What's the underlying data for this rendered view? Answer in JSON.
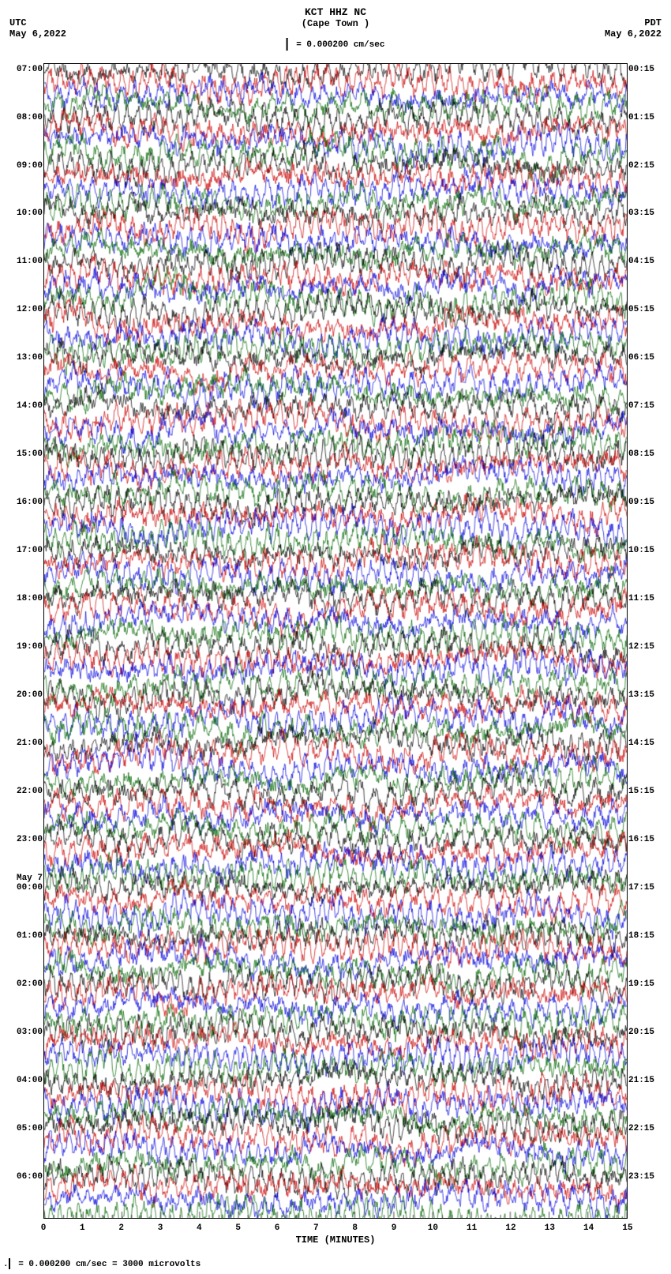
{
  "header": {
    "station": "KCT HHZ NC",
    "location": "(Cape Town )",
    "scale_text": "= 0.000200 cm/sec"
  },
  "tz_left": {
    "tz": "UTC",
    "date": "May 6,2022"
  },
  "tz_right": {
    "tz": "PDT",
    "date": "May 6,2022"
  },
  "seismogram": {
    "type": "helicorder",
    "background_color": "#ffffff",
    "trace_colors": [
      "#000000",
      "#cc0000",
      "#0000dd",
      "#006600"
    ],
    "amplitude_overlap": 1.6,
    "x_minutes": 15,
    "hour_rows_utc": [
      "07:00",
      "08:00",
      "09:00",
      "10:00",
      "11:00",
      "12:00",
      "13:00",
      "14:00",
      "15:00",
      "16:00",
      "17:00",
      "18:00",
      "19:00",
      "20:00",
      "21:00",
      "22:00",
      "23:00",
      "00:00",
      "01:00",
      "02:00",
      "03:00",
      "04:00",
      "05:00",
      "06:00"
    ],
    "hour_rows_pdt": [
      "00:15",
      "01:15",
      "02:15",
      "03:15",
      "04:15",
      "05:15",
      "06:15",
      "07:15",
      "08:15",
      "09:15",
      "10:15",
      "11:15",
      "12:15",
      "13:15",
      "14:15",
      "15:15",
      "16:15",
      "17:15",
      "18:15",
      "19:15",
      "20:15",
      "21:15",
      "22:15",
      "23:15"
    ],
    "utc_midnight_label": "May 7",
    "traces_per_hour": 4,
    "samples_per_trace": 900,
    "seed": 20220506
  },
  "x_axis": {
    "label": "TIME (MINUTES)",
    "ticks": [
      0,
      1,
      2,
      3,
      4,
      5,
      6,
      7,
      8,
      9,
      10,
      11,
      12,
      13,
      14,
      15
    ],
    "minor_per_major": 4
  },
  "footer": {
    "text": "= 0.000200 cm/sec =   3000 microvolts"
  }
}
